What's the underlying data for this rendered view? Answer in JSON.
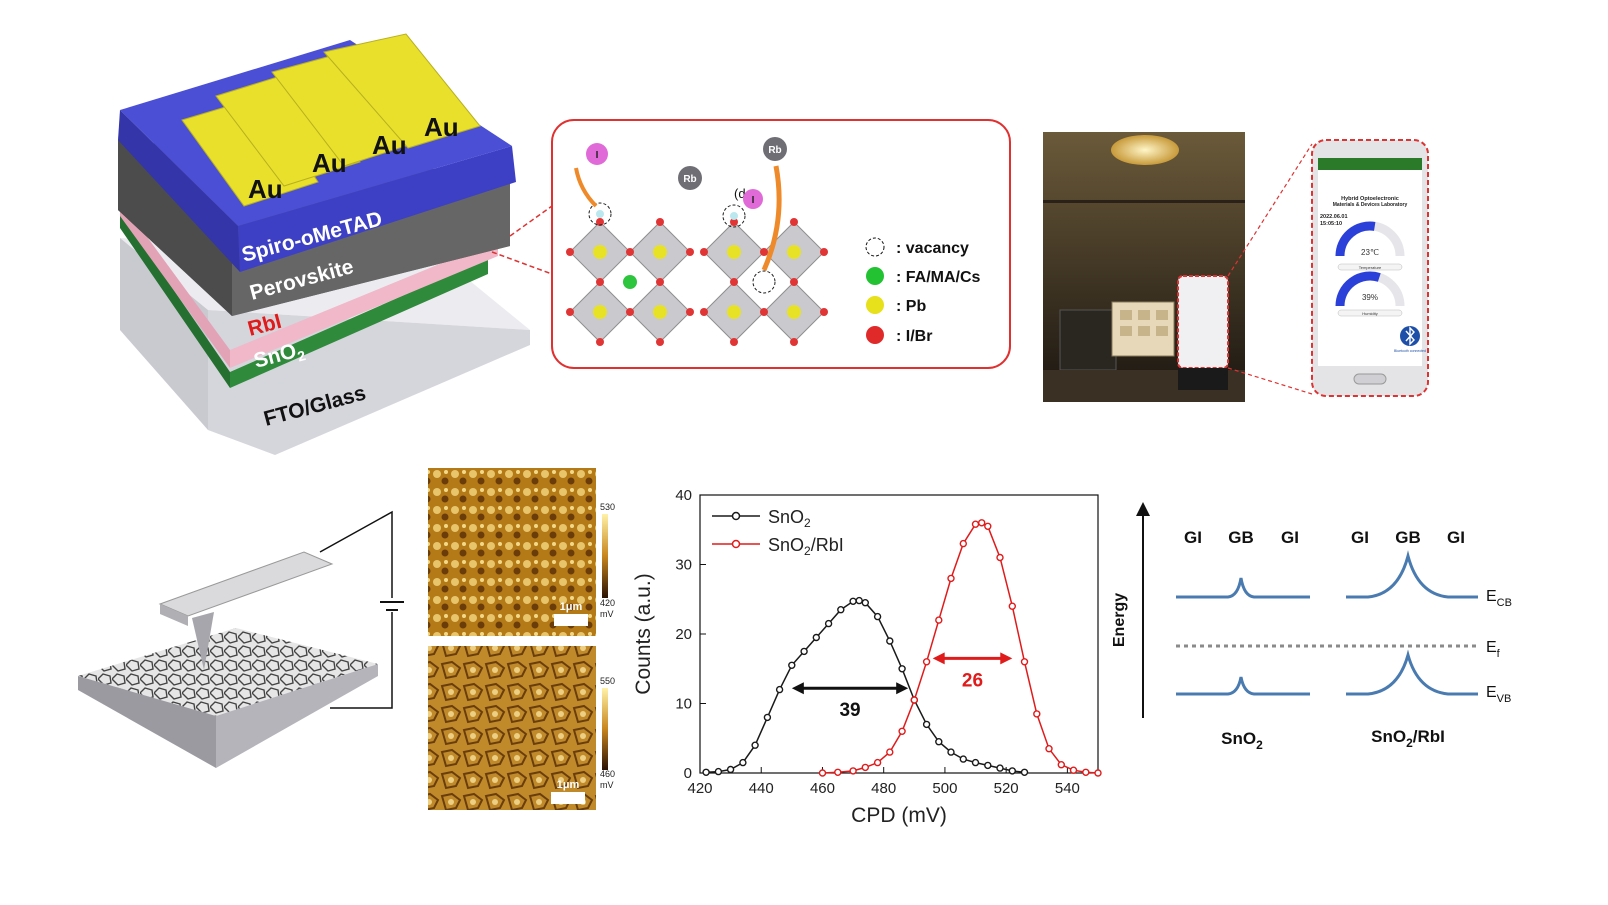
{
  "device_stack": {
    "layers": [
      "Spiro-oMeTAD",
      "Perovskite",
      "RbI",
      "SnO",
      "FTO/Glass"
    ],
    "sno2_subscript": "2",
    "electrode_label": "Au",
    "colors": {
      "spiro": "#4b4fd6",
      "perovskite": "#5f5f5f",
      "rbi_layer": "#f0b8c8",
      "sno2": "#2f8a3c",
      "glass": "#e4e4e8",
      "au": "#e8e02a",
      "rbi_text": "#e01b1b"
    }
  },
  "crystal_inset": {
    "atoms": {
      "iodide": "I",
      "rubidium": "Rb",
      "defect_mark": "(d"
    },
    "legend": [
      {
        "label": ": vacancy",
        "color": "none"
      },
      {
        "label": ": FA/MA/Cs",
        "color": "#22c233"
      },
      {
        "label": ": Pb",
        "color": "#e6e11a"
      },
      {
        "label": ": I/Br",
        "color": "#e02a2a"
      }
    ],
    "border_color": "#e03030"
  },
  "phone": {
    "title_line1": "Hybrid Optoelectronic",
    "title_line2": "Materials & Devices Laboratory",
    "date": "2022.06.01",
    "time": "15:05:10",
    "gauges": [
      {
        "value_label": "23℃",
        "name": "Temperature",
        "fraction": 0.55
      },
      {
        "value_label": "39%",
        "name": "Humidity",
        "fraction": 0.6
      }
    ],
    "bluetooth_label": "Bluetooth connected"
  },
  "kpfm_maps": [
    {
      "scale_bar": "1μm",
      "cbar_max": "530",
      "cbar_min": "420",
      "unit": "mV"
    },
    {
      "scale_bar": "1μm",
      "cbar_max": "550",
      "cbar_min": "460",
      "unit": "mV"
    }
  ],
  "chart_data": {
    "type": "line",
    "xlabel": "CPD (mV)",
    "ylabel": "Counts (a.u.)",
    "xlim": [
      420,
      550
    ],
    "ylim": [
      0,
      40
    ],
    "xticks": [
      420,
      440,
      460,
      480,
      500,
      520,
      540
    ],
    "yticks": [
      0,
      10,
      20,
      30,
      40
    ],
    "legend_position": "top-left",
    "series": [
      {
        "name": "SnO2",
        "legend_base": "SnO",
        "legend_sub": "2",
        "legend_suffix": "",
        "color": "#1a1a1a",
        "x": [
          422,
          426,
          430,
          434,
          438,
          442,
          446,
          450,
          454,
          458,
          462,
          466,
          470,
          472,
          474,
          478,
          482,
          486,
          490,
          494,
          498,
          502,
          506,
          510,
          514,
          518,
          522,
          526
        ],
        "y": [
          0.1,
          0.2,
          0.5,
          1.5,
          4,
          8,
          12,
          15.5,
          17.5,
          19.5,
          21.5,
          23.5,
          24.7,
          24.8,
          24.5,
          22.5,
          19,
          15,
          10.5,
          7,
          4.5,
          3,
          2,
          1.5,
          1.1,
          0.7,
          0.3,
          0.1
        ]
      },
      {
        "name": "SnO2/RbI",
        "legend_base": "SnO",
        "legend_sub": "2",
        "legend_suffix": "/RbI",
        "color": "#e01b1b",
        "x": [
          460,
          465,
          470,
          474,
          478,
          482,
          486,
          490,
          494,
          498,
          502,
          506,
          510,
          512,
          514,
          518,
          522,
          526,
          530,
          534,
          538,
          542,
          546,
          550
        ],
        "y": [
          0,
          0.1,
          0.3,
          0.8,
          1.5,
          3,
          6,
          10.5,
          16,
          22,
          28,
          33,
          35.8,
          36,
          35.5,
          31,
          24,
          16,
          8.5,
          3.5,
          1.2,
          0.4,
          0.1,
          0
        ]
      }
    ],
    "annotations": [
      {
        "label": "39",
        "x1": 450,
        "x2": 488,
        "y": 12.2,
        "color": "#111111"
      },
      {
        "label": "26",
        "x1": 496,
        "x2": 522,
        "y": 16.5,
        "color": "#e01b1b"
      }
    ]
  },
  "band_diagram": {
    "axis_label": "Energy",
    "columns": [
      "GI",
      "GB",
      "GI"
    ],
    "panel_labels": [
      {
        "base": "SnO",
        "sub": "2",
        "suffix": ""
      },
      {
        "base": "SnO",
        "sub": "2",
        "suffix": "/RbI"
      }
    ],
    "levels": [
      {
        "base": "E",
        "sub": "CB"
      },
      {
        "base": "E",
        "sub": "f"
      },
      {
        "base": "E",
        "sub": "VB"
      }
    ],
    "line_color": "#4a7bb0"
  }
}
